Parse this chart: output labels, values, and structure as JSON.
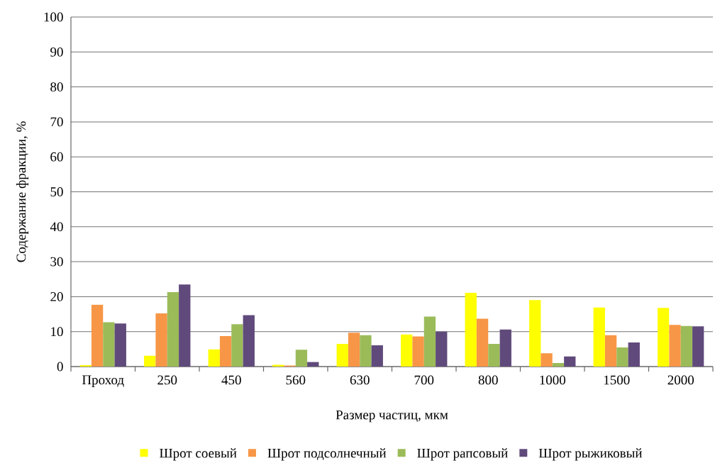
{
  "chart_data": {
    "type": "bar",
    "xlabel": "Размер частиц, мкм",
    "ylabel": "Содержание фракции, %",
    "categories": [
      "Проход",
      "250",
      "450",
      "560",
      "630",
      "700",
      "800",
      "1000",
      "1500",
      "2000"
    ],
    "series": [
      {
        "name": "Шрот соевый",
        "color": "#ffff00",
        "values": [
          0.4,
          3.1,
          4.9,
          0.5,
          6.5,
          9.2,
          21.1,
          19.0,
          16.9,
          16.8
        ]
      },
      {
        "name": "Шрот подсолнечный",
        "color": "#f79646",
        "values": [
          17.7,
          15.2,
          8.7,
          0.3,
          9.7,
          8.6,
          13.7,
          3.8,
          9.0,
          11.9
        ]
      },
      {
        "name": "Шрот рапсовый",
        "color": "#9bbb59",
        "values": [
          12.7,
          21.3,
          12.1,
          4.8,
          9.0,
          14.3,
          6.5,
          1.0,
          5.5,
          11.6
        ]
      },
      {
        "name": "Шрот рыжиковый",
        "color": "#604a7b",
        "values": [
          12.3,
          23.5,
          14.7,
          1.3,
          6.1,
          10.0,
          10.6,
          2.9,
          6.9,
          11.5
        ]
      }
    ],
    "ylim": [
      0,
      100
    ],
    "yticks": [
      0,
      10,
      20,
      30,
      40,
      50,
      60,
      70,
      80,
      90,
      100
    ],
    "grid": "y",
    "legend": "bottom"
  }
}
